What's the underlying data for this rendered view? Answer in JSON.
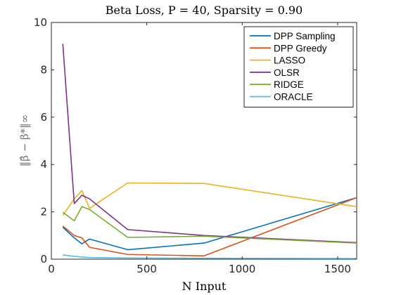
{
  "chart_data": {
    "type": "line",
    "title": "Beta Loss, P = 40, Sparsity = 0.90",
    "xlabel": "N Input",
    "ylabel": "‖β̂ − β*‖∞",
    "xlim": [
      0,
      1600
    ],
    "ylim": [
      0,
      10
    ],
    "xticks": [
      0,
      500,
      1000,
      1500
    ],
    "yticks": [
      0,
      2,
      4,
      6,
      8,
      10
    ],
    "grid": false,
    "legend_position": "top-right",
    "series": [
      {
        "name": "DPP Sampling",
        "color": "#0072bd",
        "x": [
          60,
          120,
          160,
          200,
          400,
          800,
          1600
        ],
        "y": [
          1.35,
          0.9,
          0.65,
          0.85,
          0.4,
          0.68,
          2.6
        ]
      },
      {
        "name": "DPP Greedy",
        "color": "#d95319",
        "x": [
          60,
          120,
          160,
          200,
          400,
          800,
          1600
        ],
        "y": [
          1.4,
          1.0,
          0.9,
          0.5,
          0.2,
          0.14,
          2.6
        ]
      },
      {
        "name": "LASSO",
        "color": "#edb120",
        "x": [
          60,
          120,
          160,
          200,
          400,
          800,
          1600
        ],
        "y": [
          1.85,
          2.55,
          2.9,
          2.15,
          3.22,
          3.2,
          2.22
        ]
      },
      {
        "name": "OLSR",
        "color": "#7e2f8e",
        "x": [
          60,
          120,
          160,
          200,
          400,
          800,
          1600
        ],
        "y": [
          9.1,
          2.35,
          2.7,
          2.55,
          1.25,
          1.0,
          0.7
        ]
      },
      {
        "name": "RIDGE",
        "color": "#77ac30",
        "x": [
          60,
          120,
          160,
          200,
          400,
          800,
          1600
        ],
        "y": [
          1.98,
          1.62,
          2.22,
          2.1,
          0.92,
          0.97,
          0.68
        ]
      },
      {
        "name": "ORACLE",
        "color": "#4dbeee",
        "x": [
          60,
          120,
          160,
          200,
          400,
          800,
          1600
        ],
        "y": [
          0.18,
          0.12,
          0.09,
          0.07,
          0.05,
          0.04,
          0.03
        ]
      }
    ]
  }
}
